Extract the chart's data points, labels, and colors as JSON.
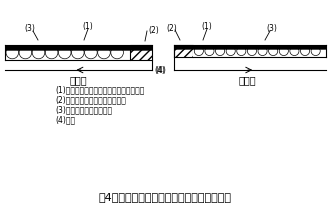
{
  "title": "図4　オルガスタ法油分センサの動作原理図",
  "label_before": "膨潤前",
  "label_after": "膨潤後",
  "legend_lines": [
    "(1)導電性微粒子（金属粉　炭素微粉末）",
    "(2)端子部（導電性銀塗料皮膜）",
    "(3)結合剤（高分子物質）",
    "(4)基板"
  ],
  "bg_color": "#ffffff",
  "line_color": "#000000"
}
